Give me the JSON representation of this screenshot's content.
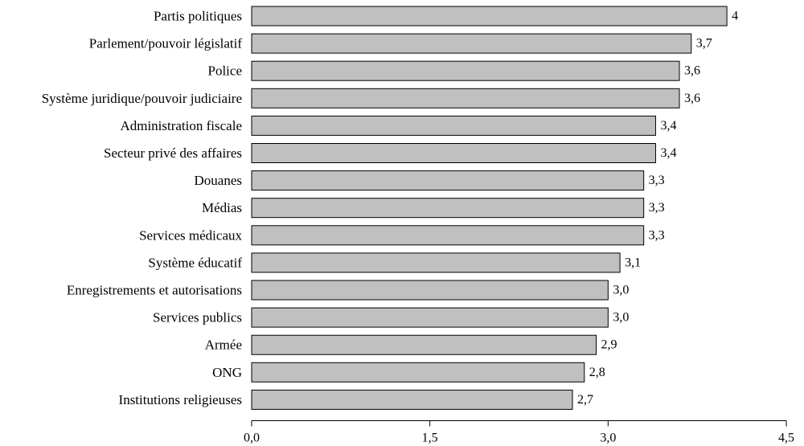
{
  "chart_data": {
    "type": "bar",
    "orientation": "horizontal",
    "categories": [
      "Partis politiques",
      "Parlement/pouvoir législatif",
      "Police",
      "Système juridique/pouvoir judiciaire",
      "Administration fiscale",
      "Secteur privé des affaires",
      "Douanes",
      "Médias",
      "Services médicaux",
      "Système éducatif",
      "Enregistrements et autorisations",
      "Services publics",
      "Armée",
      "ONG",
      "Institutions religieuses"
    ],
    "values": [
      4.0,
      3.7,
      3.6,
      3.6,
      3.4,
      3.4,
      3.3,
      3.3,
      3.3,
      3.1,
      3.0,
      3.0,
      2.9,
      2.8,
      2.7
    ],
    "value_labels": [
      "4",
      "3,7",
      "3,6",
      "3,6",
      "3,4",
      "3,4",
      "3,3",
      "3,3",
      "3,3",
      "3,1",
      "3,0",
      "3,0",
      "2,9",
      "2,8",
      "2,7"
    ],
    "xlim": [
      0,
      4.5
    ],
    "x_ticks": [
      0,
      1.5,
      3.0,
      4.5
    ],
    "x_tick_labels": [
      "0,0",
      "1,5",
      "3,0",
      "4,5"
    ],
    "bar_color": "#c0c0c0",
    "bar_edge_color": "#000000",
    "grid": false,
    "legend": "none"
  }
}
